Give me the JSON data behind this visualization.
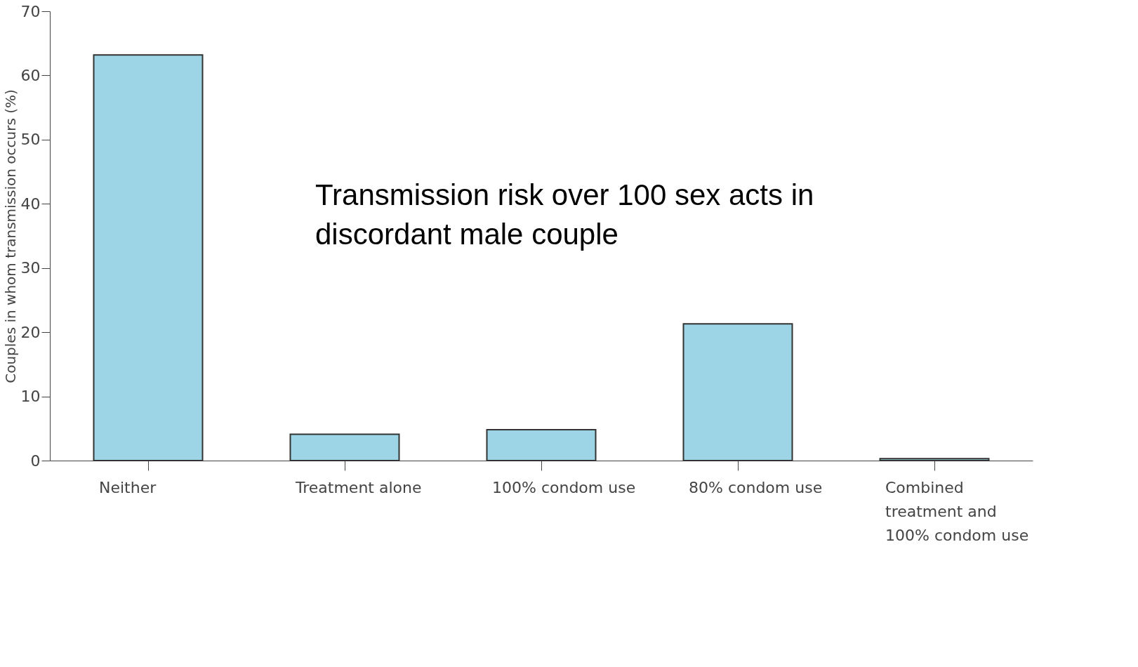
{
  "chart_data": {
    "type": "bar",
    "ylabel": "Couples in whom transmission occurs (%)",
    "categories": [
      "Neither",
      "Treatment alone",
      "100% condom use",
      "80% condom use",
      "Combined treatment and 100% condom use"
    ],
    "values": [
      63.2,
      4.1,
      4.8,
      21.3,
      0.3
    ],
    "color": "#9dd4e6",
    "ylim": [
      0,
      70
    ],
    "yticks": [
      0,
      10,
      20,
      30,
      40,
      50,
      60,
      70
    ],
    "grid": false,
    "annotations": [
      "Transmission risk over 100 sex acts in discordant male couple"
    ]
  }
}
